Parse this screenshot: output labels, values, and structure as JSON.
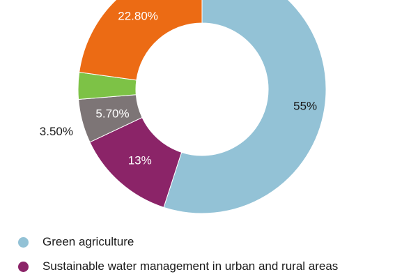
{
  "chart_data": {
    "type": "pie",
    "variant": "donut",
    "slices": [
      {
        "name": "Green agriculture",
        "value": 55,
        "label": "55%",
        "color": "#93c2d6",
        "label_color": "#1a1a1a"
      },
      {
        "name": "Sustainable water management in urban and rural areas",
        "value": 13,
        "label": "13%",
        "color": "#8b2468",
        "label_color": "#ffffff"
      },
      {
        "name": "",
        "value": 5.7,
        "label": "5.70%",
        "color": "#7d7576",
        "label_color": "#ffffff"
      },
      {
        "name": "",
        "value": 3.5,
        "label": "3.50%",
        "color": "#7dc246",
        "label_color": "#1a1a1a"
      },
      {
        "name": "",
        "value": 22.8,
        "label": "22.80%",
        "color": "#ec6b14",
        "label_color": "#ffffff"
      }
    ],
    "legend": {
      "placement": "bottom-left",
      "entries": [
        {
          "label": "Green agriculture",
          "color": "#93c2d6"
        },
        {
          "label": "Sustainable water management in urban and rural areas",
          "color": "#8b2468"
        }
      ]
    }
  }
}
